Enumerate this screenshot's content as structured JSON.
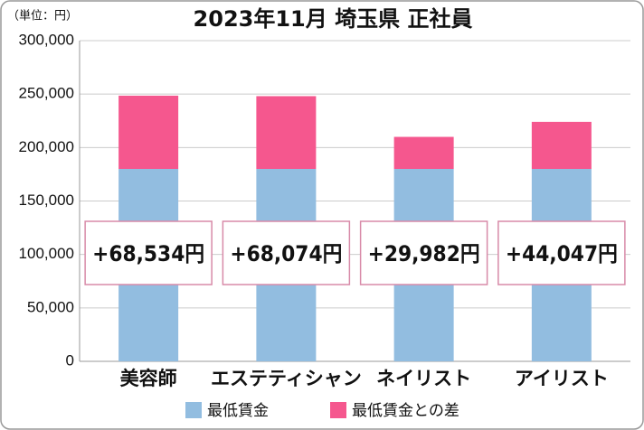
{
  "chart_data": {
    "type": "stacked_bar",
    "title": "2023年11月 埼玉県 正社員",
    "unit_label": "（単位：円）",
    "categories": [
      "美容師",
      "エステティシャン",
      "ネイリスト",
      "アイリスト"
    ],
    "series": [
      {
        "name": "最低賃金",
        "color": "#92bde0",
        "values": [
          180000,
          180000,
          180000,
          180000
        ]
      },
      {
        "name": "最低賃金との差",
        "color": "#f5578e",
        "values": [
          68534,
          68074,
          29982,
          44047
        ],
        "value_labels": [
          "+68,534円",
          "+68,074円",
          "+29,982円",
          "+44,047円"
        ]
      }
    ],
    "ylim": [
      0,
      300000
    ],
    "yticks": [
      0,
      {
        "value": 50000,
        "label": "50,000"
      },
      {
        "value": 100000,
        "label": "100,000"
      },
      {
        "value": 150000,
        "label": "150,000"
      },
      {
        "value": 200000,
        "label": "200,000"
      },
      {
        "value": 250000,
        "label": "250,000"
      },
      {
        "value": 300000,
        "label": "300,000"
      }
    ],
    "grid": true,
    "legend": "bottom"
  }
}
